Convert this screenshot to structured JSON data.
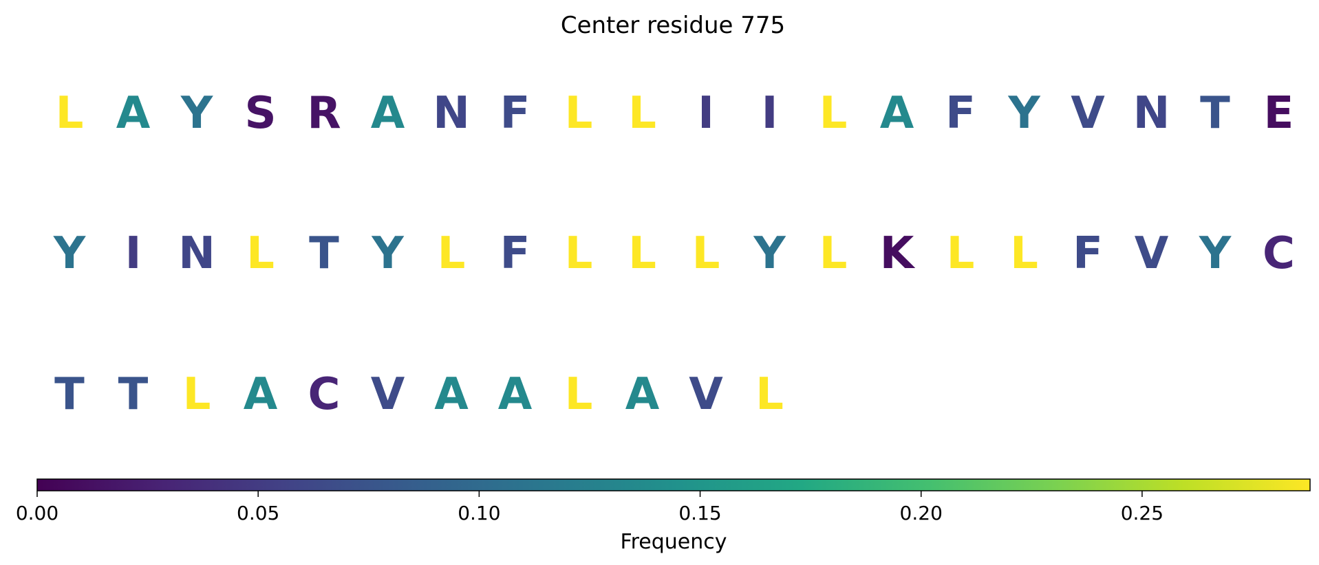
{
  "chart_data": {
    "type": "heatmap",
    "title": "Center residue 775",
    "colormap": "viridis",
    "color_range": [
      0.0,
      0.288
    ],
    "colorbar": {
      "label": "Frequency",
      "ticks": [
        0.0,
        0.05,
        0.1,
        0.15,
        0.2,
        0.25
      ],
      "tick_labels": [
        "0.00",
        "0.05",
        "0.10",
        "0.15",
        "0.20",
        "0.25"
      ]
    },
    "rows": [
      {
        "residues": [
          "L",
          "A",
          "Y",
          "S",
          "R",
          "A",
          "N",
          "F",
          "L",
          "L",
          "I",
          "I",
          "L",
          "A",
          "F",
          "Y",
          "V",
          "N",
          "T",
          "E"
        ],
        "frequencies": [
          0.288,
          0.135,
          0.11,
          0.015,
          0.015,
          0.135,
          0.06,
          0.065,
          0.288,
          0.288,
          0.05,
          0.05,
          0.288,
          0.135,
          0.065,
          0.11,
          0.065,
          0.06,
          0.075,
          0.01
        ]
      },
      {
        "residues": [
          "Y",
          "I",
          "N",
          "L",
          "T",
          "Y",
          "L",
          "F",
          "L",
          "L",
          "L",
          "Y",
          "L",
          "K",
          "L",
          "L",
          "F",
          "V",
          "Y",
          "C"
        ],
        "frequencies": [
          0.11,
          0.05,
          0.06,
          0.288,
          0.075,
          0.11,
          0.288,
          0.065,
          0.288,
          0.288,
          0.288,
          0.11,
          0.288,
          0.01,
          0.288,
          0.288,
          0.065,
          0.065,
          0.11,
          0.03
        ]
      },
      {
        "residues": [
          "T",
          "T",
          "L",
          "A",
          "C",
          "V",
          "A",
          "A",
          "L",
          "A",
          "V",
          "L"
        ],
        "frequencies": [
          0.075,
          0.075,
          0.288,
          0.135,
          0.03,
          0.065,
          0.135,
          0.135,
          0.288,
          0.135,
          0.065,
          0.288
        ]
      }
    ]
  }
}
